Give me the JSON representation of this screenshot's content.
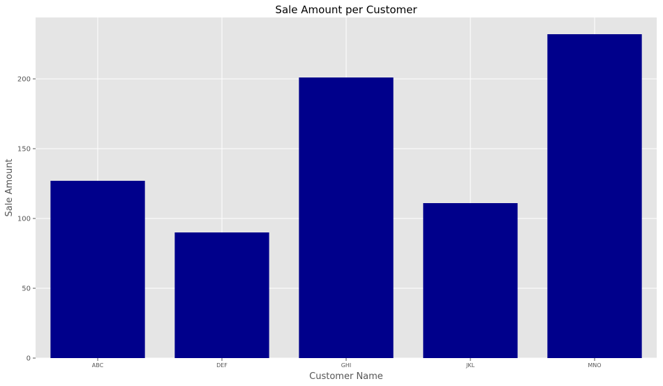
{
  "colors": {
    "plot_background": "#e5e5e5",
    "grid": "#ffffff",
    "bar": "#00008b",
    "tick": "#555555",
    "text": "#000000"
  },
  "chart_data": {
    "type": "bar",
    "title": "Sale Amount per Customer",
    "xlabel": "Customer Name",
    "ylabel": "Sale Amount",
    "categories": [
      "ABC",
      "DEF",
      "GHI",
      "JKL",
      "MNO"
    ],
    "values": [
      127,
      90,
      201,
      111,
      232
    ],
    "ylim": [
      0,
      244
    ],
    "yticks": [
      0,
      50,
      100,
      150,
      200
    ],
    "grid": true,
    "legend": "none"
  }
}
